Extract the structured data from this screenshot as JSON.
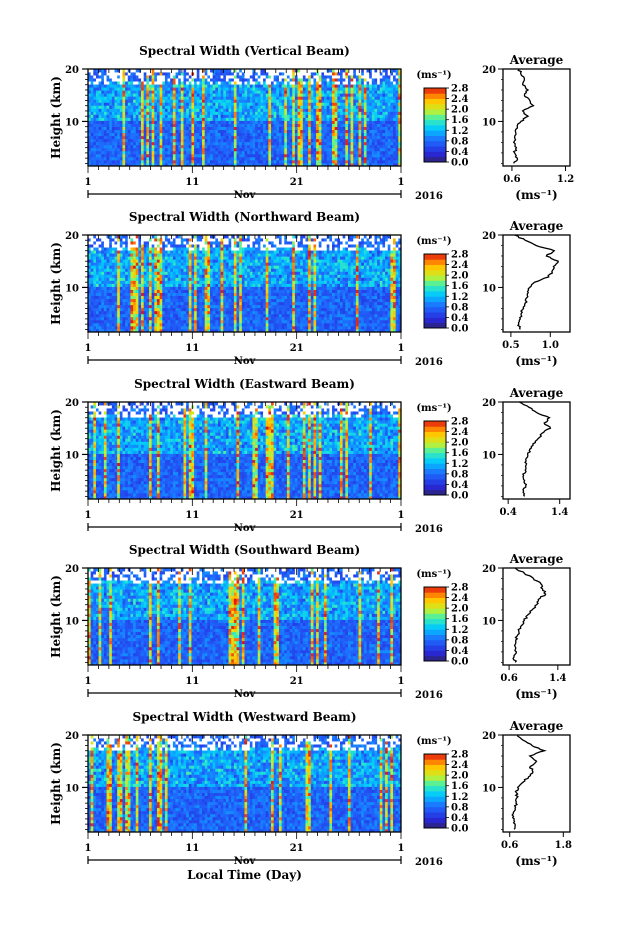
{
  "chart_data": [
    {
      "type": "heatmap",
      "title": "Spectral Width (Vertical Beam)",
      "ylabel": "Height (km)",
      "ylim": [
        1.5,
        20
      ],
      "yticks": [
        10,
        20
      ],
      "x_tick_labels": [
        "1",
        "11",
        "21",
        "1"
      ],
      "month_label": "Nov",
      "year_label": "2016",
      "colorbar": {
        "unit": "(ms⁻¹)",
        "ticks": [
          "0.0",
          "0.4",
          "0.8",
          "1.2",
          "1.6",
          "2.0",
          "2.4",
          "2.8"
        ],
        "range": [
          0,
          2.8
        ]
      },
      "profile": {
        "title": "Average",
        "xticks": [
          "0.6",
          "1.2"
        ],
        "xlim": [
          0.5,
          1.25
        ],
        "xlabel": "(ms⁻¹)",
        "heights": [
          2,
          3,
          4,
          5,
          6,
          7,
          8,
          9,
          10,
          11,
          12,
          13,
          14,
          15,
          16,
          17,
          18,
          19,
          20
        ],
        "values": [
          0.62,
          0.66,
          0.63,
          0.65,
          0.62,
          0.63,
          0.64,
          0.66,
          0.7,
          0.78,
          0.72,
          0.84,
          0.8,
          0.74,
          0.78,
          0.72,
          0.74,
          0.7,
          0.68
        ]
      }
    },
    {
      "type": "heatmap",
      "title": "Spectral Width (Northward Beam)",
      "ylabel": "Height (km)",
      "ylim": [
        1.5,
        20
      ],
      "yticks": [
        10,
        20
      ],
      "x_tick_labels": [
        "1",
        "11",
        "21",
        "1"
      ],
      "month_label": "Nov",
      "year_label": "2016",
      "colorbar": {
        "unit": "(ms⁻¹)",
        "ticks": [
          "0.0",
          "0.4",
          "0.8",
          "1.2",
          "1.6",
          "2.0",
          "2.4",
          "2.8"
        ],
        "range": [
          0,
          2.8
        ]
      },
      "profile": {
        "title": "Average",
        "xticks": [
          "0.5",
          "1.0"
        ],
        "xlim": [
          0.4,
          1.25
        ],
        "xlabel": "(ms⁻¹)",
        "heights": [
          2,
          3,
          4,
          5,
          6,
          7,
          8,
          9,
          10,
          11,
          12,
          13,
          14,
          15,
          16,
          17,
          18,
          19,
          20
        ],
        "values": [
          0.62,
          0.6,
          0.62,
          0.63,
          0.66,
          0.68,
          0.7,
          0.72,
          0.74,
          0.8,
          0.98,
          1.02,
          1.04,
          1.1,
          0.95,
          1.05,
          0.82,
          0.68,
          0.55
        ]
      }
    },
    {
      "type": "heatmap",
      "title": "Spectral Width (Eastward Beam)",
      "ylabel": "Height (km)",
      "ylim": [
        1.5,
        20
      ],
      "yticks": [
        10,
        20
      ],
      "x_tick_labels": [
        "1",
        "11",
        "21",
        "1"
      ],
      "month_label": "Nov",
      "year_label": "2016",
      "colorbar": {
        "unit": "(ms⁻¹)",
        "ticks": [
          "0.0",
          "0.4",
          "0.8",
          "1.2",
          "1.6",
          "2.0",
          "2.4",
          "2.8"
        ],
        "range": [
          0,
          2.8
        ]
      },
      "profile": {
        "title": "Average",
        "xticks": [
          "0.4",
          "1.4"
        ],
        "xlim": [
          0.3,
          1.6
        ],
        "xlabel": "",
        "heights": [
          2,
          3,
          4,
          5,
          6,
          7,
          8,
          9,
          10,
          11,
          12,
          13,
          14,
          15,
          16,
          17,
          18,
          19,
          20
        ],
        "values": [
          0.72,
          0.7,
          0.74,
          0.72,
          0.7,
          0.73,
          0.75,
          0.74,
          0.78,
          0.82,
          0.88,
          0.98,
          1.05,
          1.22,
          1.1,
          1.2,
          0.95,
          0.8,
          0.62
        ]
      }
    },
    {
      "type": "heatmap",
      "title": "Spectral Width (Southward Beam)",
      "ylabel": "Height (km)",
      "ylim": [
        1.5,
        20
      ],
      "yticks": [
        10,
        20
      ],
      "x_tick_labels": [
        "1",
        "11",
        "21",
        "1"
      ],
      "month_label": "Nov",
      "year_label": "2016",
      "colorbar": {
        "unit": "(ms⁻¹)",
        "ticks": [
          "0.0",
          "0.4",
          "0.8",
          "1.2",
          "1.6",
          "2.0",
          "2.4",
          "2.8"
        ],
        "range": [
          0,
          2.8
        ]
      },
      "profile": {
        "title": "Average",
        "xticks": [
          "0.6",
          "1.4"
        ],
        "xlim": [
          0.5,
          1.6
        ],
        "xlabel": "(ms⁻¹)",
        "heights": [
          2,
          3,
          4,
          5,
          6,
          7,
          8,
          9,
          10,
          11,
          12,
          13,
          14,
          15,
          16,
          17,
          18,
          19,
          20
        ],
        "values": [
          0.7,
          0.68,
          0.72,
          0.7,
          0.71,
          0.73,
          0.76,
          0.8,
          0.85,
          0.9,
          0.98,
          1.05,
          1.08,
          1.2,
          1.15,
          1.12,
          1.0,
          0.85,
          0.7
        ]
      }
    },
    {
      "type": "heatmap",
      "title": "Spectral Width (Westward Beam)",
      "ylabel": "Height (km)",
      "ylim": [
        1.5,
        20
      ],
      "yticks": [
        10,
        20
      ],
      "x_tick_labels": [
        "1",
        "11",
        "21",
        "1"
      ],
      "month_label": "Nov",
      "year_label": "2016",
      "colorbar": {
        "unit": "(ms⁻¹)",
        "ticks": [
          "0.0",
          "0.4",
          "0.8",
          "1.2",
          "1.6",
          "2.0",
          "2.4",
          "2.8"
        ],
        "range": [
          0,
          2.8
        ]
      },
      "profile": {
        "title": "Average",
        "xticks": [
          "0.6",
          "1.8"
        ],
        "xlim": [
          0.45,
          1.95
        ],
        "xlabel": "(ms⁻¹)",
        "heights": [
          2,
          3,
          4,
          5,
          6,
          7,
          8,
          9,
          10,
          11,
          12,
          13,
          14,
          15,
          16,
          17,
          18,
          19,
          20
        ],
        "values": [
          0.7,
          0.72,
          0.7,
          0.68,
          0.72,
          0.74,
          0.76,
          0.75,
          0.78,
          0.9,
          1.02,
          1.12,
          1.06,
          1.2,
          1.05,
          1.38,
          1.1,
          0.9,
          0.78
        ]
      }
    }
  ],
  "xlabel": "Local Time (Day)"
}
